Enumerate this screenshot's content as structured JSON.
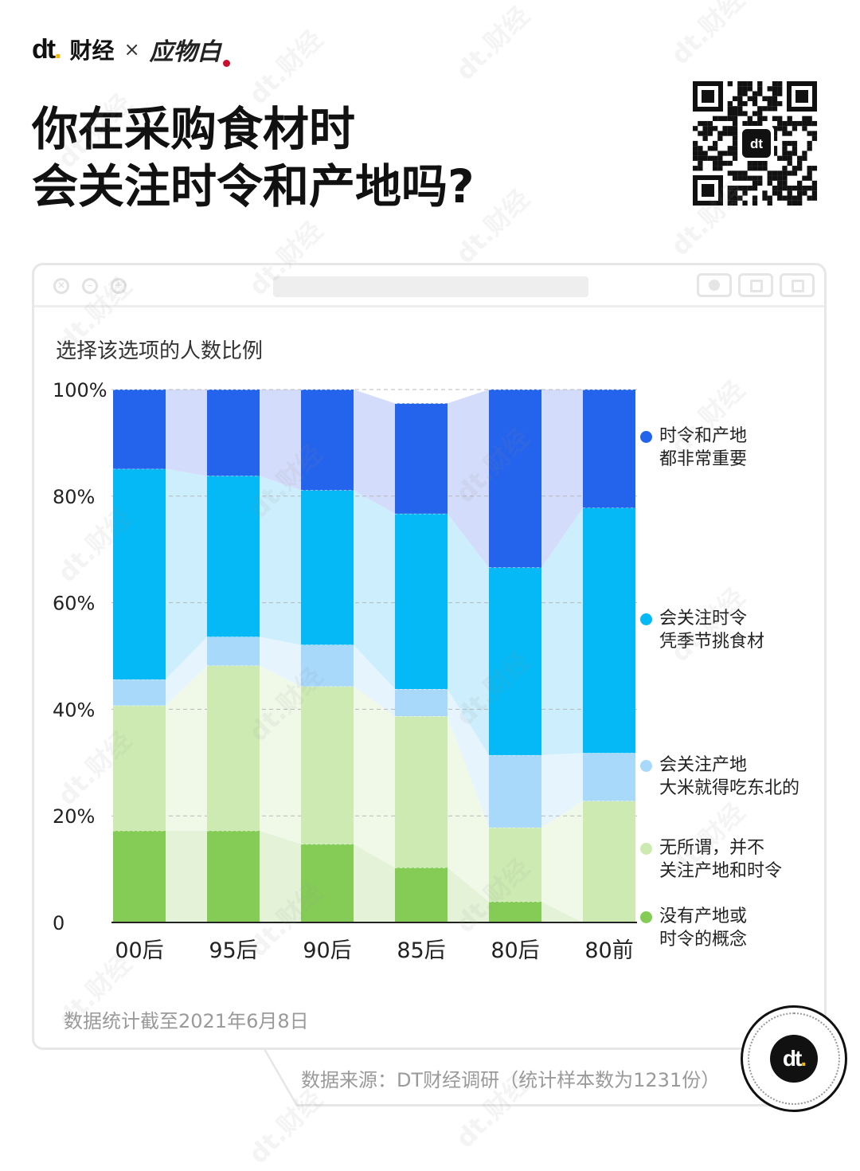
{
  "brand": {
    "logo": "dt",
    "name": "财经",
    "cross": "×",
    "partner": "应物白"
  },
  "title_lines": [
    "你在采购食材时",
    "会关注时令和产地吗?"
  ],
  "qr_center_logo": "dt",
  "watermark_text": "dt.财经",
  "chart_data": {
    "type": "bar",
    "stacked": true,
    "title": "选择该选项的人数比例",
    "categories": [
      "00后",
      "95后",
      "90后",
      "85后",
      "80后",
      "80前"
    ],
    "ylim": [
      0,
      100
    ],
    "yticks": [
      "0",
      "20%",
      "40%",
      "60%",
      "80%",
      "100%"
    ],
    "grid": true,
    "legend_position": "right",
    "series": [
      {
        "name": "没有产地或\n时令的概念",
        "color": "#85cc57",
        "band_color": "#e4f3d8",
        "values": [
          17.2,
          17.2,
          14.7,
          10.3,
          3.9,
          0.0
        ]
      },
      {
        "name": "无所谓，并不\n关注产地和时令",
        "color": "#cdeab3",
        "band_color": "#f0f9e8",
        "values": [
          23.5,
          31.0,
          29.6,
          28.4,
          13.9,
          22.8
        ]
      },
      {
        "name": "会关注产地\n大米就得吃东北的",
        "color": "#a8d9fb",
        "band_color": "#e6f4fe",
        "values": [
          4.9,
          5.4,
          7.8,
          5.1,
          13.6,
          9.0
        ]
      },
      {
        "name": "会关注时令\n凭季节挑食材",
        "color": "#04b9f5",
        "band_color": "#cdeefc",
        "values": [
          39.5,
          30.2,
          29.0,
          32.9,
          35.2,
          46.0
        ]
      },
      {
        "name": "时令和产地\n都非常重要",
        "color": "#2463ec",
        "band_color": "#d3dcfa",
        "values": [
          14.9,
          16.2,
          18.9,
          20.7,
          33.4,
          22.2
        ]
      }
    ]
  },
  "footnote": "数据统计截至2021年6月8日",
  "source": "数据来源：DT财经调研（统计样本数为1231份）",
  "badge_logo": "dt"
}
